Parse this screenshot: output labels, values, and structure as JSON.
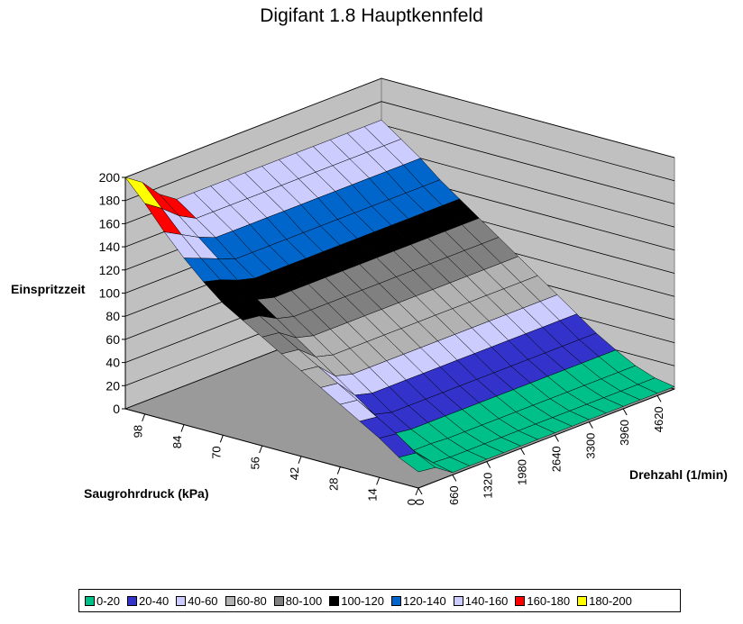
{
  "chart_data": {
    "type": "surface",
    "title": "Digifant 1.8 Hauptkennfeld",
    "zlabel": "Einspritzzeit",
    "xlabel": "Drehzahl (1/min)",
    "ylabel": "Saugrohrdruck (kPa)",
    "zlim": [
      0,
      200
    ],
    "z_ticks": [
      "0",
      "20",
      "40",
      "60",
      "80",
      "100",
      "120",
      "140",
      "160",
      "180",
      "200"
    ],
    "pressure_ticks": [
      "0",
      "14",
      "28",
      "42",
      "56",
      "70",
      "84",
      "98"
    ],
    "rpm_ticks": [
      "0",
      "660",
      "1320",
      "1980",
      "2640",
      "3300",
      "3960",
      "4620"
    ],
    "grid": true,
    "legend_position": "bottom",
    "rpm": [
      0,
      330,
      660,
      990,
      1320,
      1650,
      1980,
      2310,
      2640,
      2970,
      3300,
      3630,
      3960,
      4290,
      4620,
      4950
    ],
    "pressure": [
      0,
      7,
      14,
      21,
      28,
      35,
      42,
      49,
      56,
      63,
      70,
      77,
      84,
      91,
      98,
      105
    ],
    "z_rows_by_pressure": [
      [
        14,
        12,
        2,
        2,
        2,
        2,
        2,
        2,
        2,
        2,
        2,
        2,
        2,
        2,
        2,
        2
      ],
      [
        22,
        20,
        6,
        5,
        5,
        5,
        5,
        5,
        5,
        5,
        5,
        5,
        5,
        5,
        5,
        5
      ],
      [
        34,
        32,
        12,
        12,
        11,
        11,
        11,
        11,
        11,
        11,
        11,
        11,
        11,
        11,
        11,
        11
      ],
      [
        44,
        42,
        22,
        20,
        20,
        20,
        20,
        20,
        20,
        20,
        20,
        20,
        20,
        20,
        20,
        20
      ],
      [
        54,
        52,
        34,
        30,
        30,
        30,
        30,
        30,
        30,
        30,
        30,
        30,
        30,
        30,
        30,
        30
      ],
      [
        64,
        62,
        46,
        42,
        42,
        42,
        42,
        42,
        42,
        42,
        42,
        42,
        42,
        42,
        42,
        42
      ],
      [
        74,
        72,
        58,
        54,
        54,
        54,
        54,
        54,
        54,
        54,
        54,
        54,
        54,
        54,
        54,
        54
      ],
      [
        84,
        82,
        70,
        66,
        66,
        66,
        66,
        66,
        66,
        66,
        66,
        66,
        66,
        66,
        66,
        66
      ],
      [
        94,
        92,
        82,
        78,
        78,
        78,
        78,
        78,
        78,
        78,
        78,
        78,
        78,
        78,
        78,
        78
      ],
      [
        104,
        102,
        94,
        90,
        90,
        90,
        90,
        90,
        90,
        90,
        90,
        90,
        90,
        90,
        90,
        90
      ],
      [
        114,
        112,
        106,
        102,
        102,
        102,
        102,
        102,
        102,
        102,
        102,
        102,
        102,
        102,
        102,
        102
      ],
      [
        128,
        124,
        118,
        114,
        114,
        114,
        114,
        114,
        114,
        114,
        114,
        114,
        114,
        114,
        114,
        114
      ],
      [
        144,
        138,
        132,
        126,
        126,
        126,
        126,
        126,
        126,
        126,
        126,
        126,
        126,
        126,
        126,
        126
      ],
      [
        162,
        154,
        146,
        140,
        140,
        140,
        140,
        140,
        140,
        140,
        140,
        140,
        140,
        140,
        140,
        140
      ],
      [
        182,
        172,
        160,
        152,
        152,
        152,
        152,
        152,
        152,
        152,
        152,
        152,
        152,
        152,
        152,
        152
      ],
      [
        200,
        190,
        174,
        164,
        164,
        164,
        164,
        164,
        164,
        164,
        164,
        164,
        164,
        164,
        164,
        164
      ]
    ],
    "legend": [
      {
        "label": "0-20",
        "color": "#00c08a"
      },
      {
        "label": "20-40",
        "color": "#3333cc"
      },
      {
        "label": "40-60",
        "color": "#ccccff"
      },
      {
        "label": "60-80",
        "color": "#b2b2b2"
      },
      {
        "label": "80-100",
        "color": "#808080"
      },
      {
        "label": "100-120",
        "color": "#000000"
      },
      {
        "label": "120-140",
        "color": "#0066cc"
      },
      {
        "label": "140-160",
        "color": "#ccccff"
      },
      {
        "label": "160-180",
        "color": "#ff0000"
      },
      {
        "label": "180-200",
        "color": "#ffff00"
      }
    ]
  }
}
